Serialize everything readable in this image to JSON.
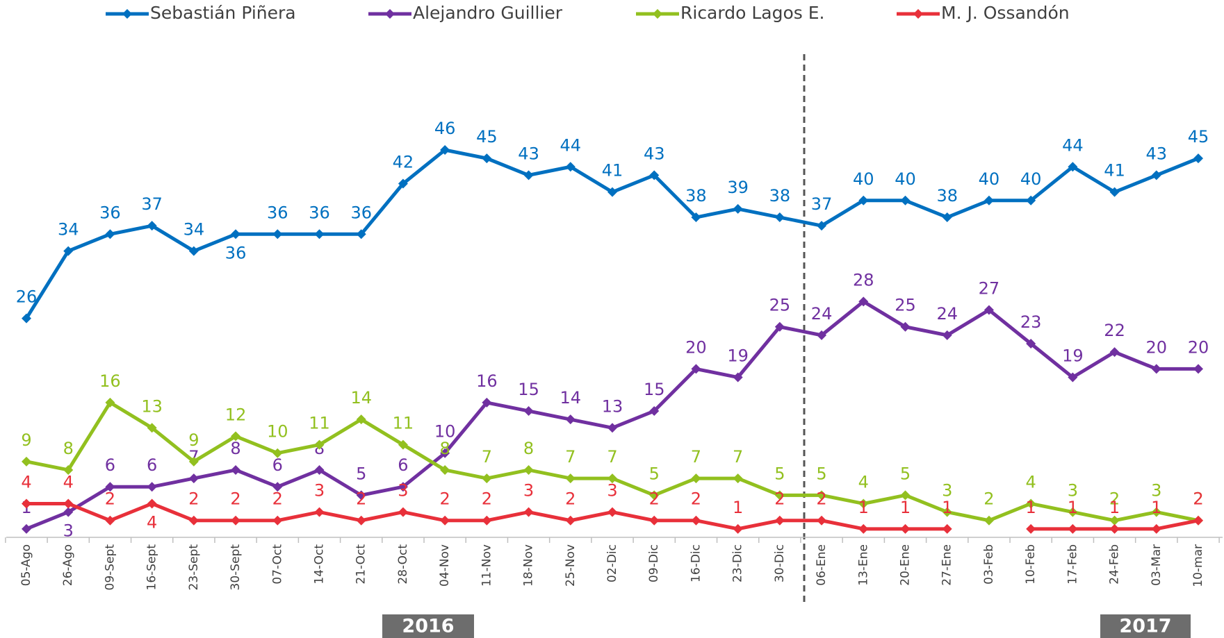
{
  "chart_data": {
    "type": "line",
    "categories": [
      "05-Ago",
      "26-Ago",
      "09-Sept",
      "16-Sept",
      "23-Sept",
      "30-Sept",
      "07-Oct",
      "14-Oct",
      "21-Oct",
      "28-Oct",
      "04-Nov",
      "11-Nov",
      "18-Nov",
      "25-Nov",
      "02-Dic",
      "09-Dic",
      "16-Dic",
      "23-Dic",
      "30-Dic",
      "06-Ene",
      "13-Ene",
      "20-Ene",
      "27-Ene",
      "03-Feb",
      "10-Feb",
      "17-Feb",
      "24-Feb",
      "03-Mar",
      "10-mar"
    ],
    "series": [
      {
        "name": "Sebastián Piñera",
        "color": "#0070c0",
        "values": [
          26,
          34,
          36,
          37,
          34,
          36,
          36,
          36,
          36,
          42,
          46,
          45,
          43,
          44,
          41,
          43,
          38,
          39,
          38,
          37,
          40,
          40,
          38,
          40,
          40,
          44,
          41,
          43,
          45
        ]
      },
      {
        "name": "Alejandro Guillier",
        "color": "#7030a0",
        "values": [
          1,
          3,
          6,
          6,
          7,
          8,
          6,
          8,
          5,
          6,
          10,
          16,
          15,
          14,
          13,
          15,
          20,
          19,
          25,
          24,
          28,
          25,
          24,
          27,
          23,
          19,
          22,
          20,
          20
        ]
      },
      {
        "name": "Ricardo Lagos E.",
        "color": "#92c01f",
        "values": [
          9,
          8,
          16,
          13,
          9,
          12,
          10,
          11,
          14,
          11,
          8,
          7,
          8,
          7,
          7,
          5,
          7,
          7,
          5,
          5,
          4,
          5,
          3,
          2,
          4,
          3,
          2,
          3,
          2
        ]
      },
      {
        "name": "M. J. Ossandón",
        "color": "#e8303a",
        "values": [
          4,
          4,
          2,
          4,
          2,
          2,
          2,
          3,
          2,
          3,
          2,
          2,
          3,
          2,
          3,
          2,
          2,
          1,
          2,
          2,
          1,
          1,
          1,
          null,
          1,
          1,
          1,
          1,
          2
        ]
      }
    ],
    "annotations": [
      "2016",
      "2017"
    ]
  }
}
